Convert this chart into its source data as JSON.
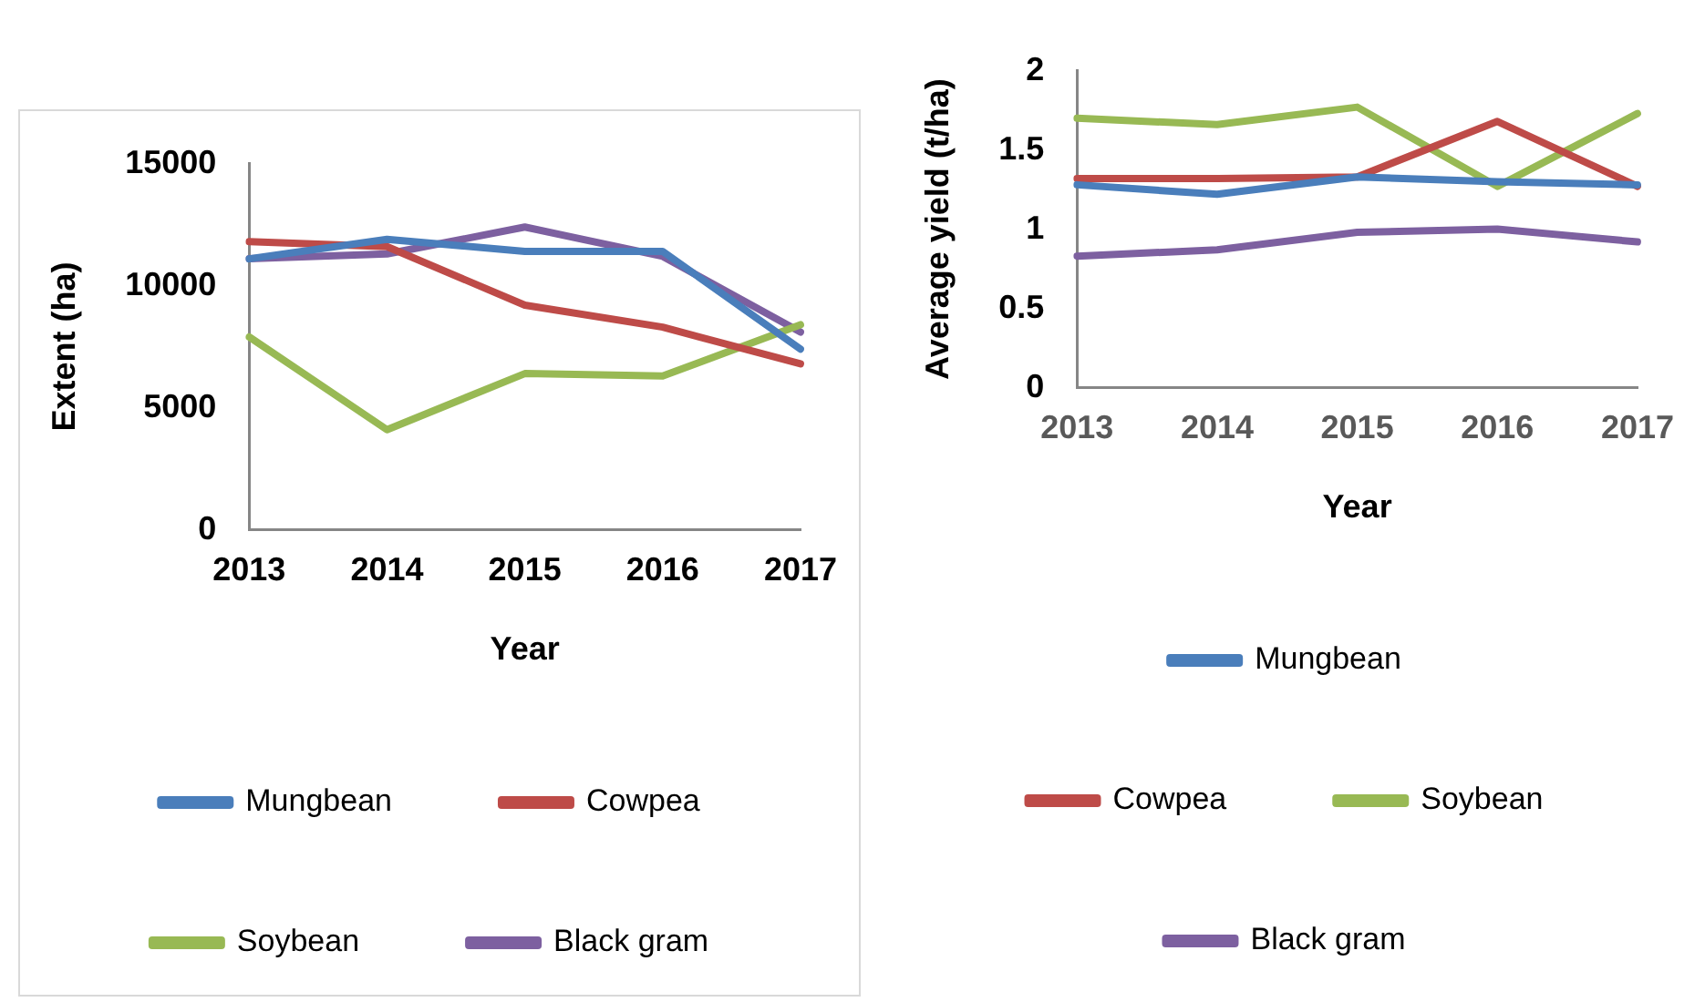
{
  "chart_data": [
    {
      "type": "line",
      "xlabel": "Year",
      "ylabel": "Extent (ha)",
      "categories": [
        "2013",
        "2014",
        "2015",
        "2016",
        "2017"
      ],
      "ylim": [
        0,
        15000
      ],
      "yticks": [
        0,
        5000,
        10000,
        15000
      ],
      "grid": false,
      "legend": "bottom",
      "marker": "none",
      "series": [
        {
          "name": "Mungbean",
          "color": "#4a7ebb",
          "values": [
            11100,
            11900,
            11400,
            11400,
            7400
          ]
        },
        {
          "name": "Cowpea",
          "color": "#be4b48",
          "values": [
            11800,
            11600,
            9200,
            8300,
            6800
          ]
        },
        {
          "name": "Soybean",
          "color": "#98b954",
          "values": [
            7900,
            4100,
            6400,
            6300,
            8400
          ]
        },
        {
          "name": "Black gram",
          "color": "#7d60a0",
          "values": [
            11100,
            11300,
            12400,
            11200,
            8100
          ]
        }
      ]
    },
    {
      "type": "line",
      "xlabel": "Year",
      "ylabel": "Average yield (t/ha)",
      "categories": [
        "2013",
        "2014",
        "2015",
        "2016",
        "2017"
      ],
      "ylim": [
        0,
        2
      ],
      "yticks": [
        0,
        0.5,
        1,
        1.5,
        2
      ],
      "grid": false,
      "legend": "bottom",
      "marker": "none",
      "series": [
        {
          "name": "Mungbean",
          "color": "#4a7ebb",
          "values": [
            1.28,
            1.22,
            1.33,
            1.3,
            1.28
          ]
        },
        {
          "name": "Cowpea",
          "color": "#be4b48",
          "values": [
            1.32,
            1.32,
            1.33,
            1.68,
            1.27
          ]
        },
        {
          "name": "Soybean",
          "color": "#98b954",
          "values": [
            1.7,
            1.66,
            1.77,
            1.27,
            1.73
          ]
        },
        {
          "name": "Black gram",
          "color": "#7d60a0",
          "values": [
            0.83,
            0.87,
            0.98,
            1.0,
            0.92
          ]
        }
      ]
    }
  ]
}
